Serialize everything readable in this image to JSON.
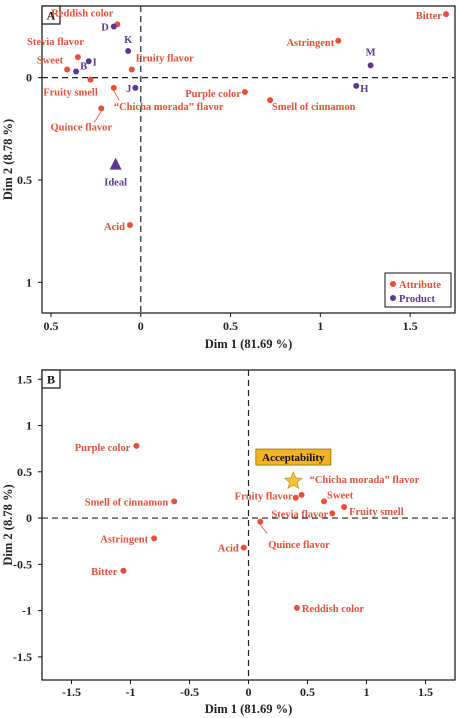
{
  "colors": {
    "attribute": "#e8503a",
    "product": "#5b3a8e",
    "highlight_fill": "#f3b324",
    "star": "#f3c13b",
    "axis": "#222222"
  },
  "chart_data": [
    {
      "panel": "A",
      "type": "scatter",
      "xlabel": "Dim 1 (81.69 %)",
      "ylabel": "Dim 2 (8.78 %)",
      "xlim": [
        -0.55,
        1.75
      ],
      "ylim": [
        -1.15,
        0.35
      ],
      "x_ticks": [
        {
          "value": -0.5,
          "label": "0.5"
        },
        {
          "value": 0,
          "label": "0"
        },
        {
          "value": 0.5,
          "label": "0.5"
        },
        {
          "value": 1,
          "label": "1"
        },
        {
          "value": 1.5,
          "label": "1.5"
        }
      ],
      "y_ticks": [
        {
          "value": 0,
          "label": "0"
        },
        {
          "value": -0.5,
          "label": "0.5"
        },
        {
          "value": -1,
          "label": "1"
        }
      ],
      "legend": {
        "position": "bottom-right",
        "entries": [
          "Attribute",
          "Product"
        ]
      },
      "series": [
        {
          "name": "Attribute",
          "marker": "circle",
          "points": [
            {
              "label": "Reddish color",
              "x": -0.13,
              "y": 0.26,
              "anchor": "end",
              "dx": -4,
              "dy": -8
            },
            {
              "label": "Stevia flavor",
              "x": -0.35,
              "y": 0.1,
              "anchor": "end",
              "dx": 6,
              "dy": -12
            },
            {
              "label": "Sweet",
              "x": -0.41,
              "y": 0.04,
              "anchor": "end",
              "dx": -4,
              "dy": -6
            },
            {
              "label": "Fruity smell",
              "x": -0.28,
              "y": -0.01,
              "anchor": "middle",
              "dx": -20,
              "dy": 16
            },
            {
              "label": "Fruity flavor",
              "x": -0.05,
              "y": 0.04,
              "anchor": "start",
              "dx": 4,
              "dy": -8
            },
            {
              "label": "Quince flavor",
              "x": -0.22,
              "y": -0.15,
              "anchor": "middle",
              "dx": -20,
              "dy": 22
            },
            {
              "label": "“Chicha morada” flavor",
              "x": -0.15,
              "y": -0.05,
              "anchor": "start",
              "dx": 0,
              "dy": 22
            },
            {
              "label": "Astringent",
              "x": 1.1,
              "y": 0.18,
              "anchor": "end",
              "dx": -4,
              "dy": 5
            },
            {
              "label": "Bitter",
              "x": 1.7,
              "y": 0.31,
              "anchor": "end",
              "dx": -4,
              "dy": 5
            },
            {
              "label": "Purple color",
              "x": 0.58,
              "y": -0.07,
              "anchor": "end",
              "dx": -4,
              "dy": 5
            },
            {
              "label": "Smell of cinnamon",
              "x": 0.72,
              "y": -0.11,
              "anchor": "start",
              "dx": 2,
              "dy": 10
            },
            {
              "label": "Acid",
              "x": -0.06,
              "y": -0.72,
              "anchor": "end",
              "dx": -5,
              "dy": 5
            }
          ]
        },
        {
          "name": "Product",
          "marker": "circle",
          "points": [
            {
              "label": "D",
              "x": -0.15,
              "y": 0.25,
              "anchor": "end",
              "dx": -5,
              "dy": 4
            },
            {
              "label": "K",
              "x": -0.07,
              "y": 0.13,
              "anchor": "middle",
              "dx": 0,
              "dy": -8
            },
            {
              "label": "I",
              "x": -0.29,
              "y": 0.08,
              "anchor": "start",
              "dx": 4,
              "dy": 4
            },
            {
              "label": "B",
              "x": -0.36,
              "y": 0.03,
              "anchor": "start",
              "dx": 4,
              "dy": -2
            },
            {
              "label": "J",
              "x": -0.03,
              "y": -0.05,
              "anchor": "end",
              "dx": -4,
              "dy": 4
            },
            {
              "label": "M",
              "x": 1.28,
              "y": 0.06,
              "anchor": "middle",
              "dx": 0,
              "dy": -10
            },
            {
              "label": "H",
              "x": 1.2,
              "y": -0.04,
              "anchor": "start",
              "dx": 4,
              "dy": 6
            }
          ]
        },
        {
          "name": "Ideal",
          "marker": "triangle",
          "points": [
            {
              "label": "Ideal",
              "x": -0.14,
              "y": -0.42,
              "anchor": "middle",
              "dx": 0,
              "dy": 22
            }
          ]
        }
      ]
    },
    {
      "panel": "B",
      "type": "scatter",
      "xlabel": "Dim 1 (81.69 %)",
      "ylabel": "Dim 2 (8.78 %)",
      "xlim": [
        -1.75,
        1.75
      ],
      "ylim": [
        -1.75,
        1.6
      ],
      "x_ticks": [
        {
          "value": -1.5,
          "label": "-1.5"
        },
        {
          "value": -1,
          "label": "-1"
        },
        {
          "value": -0.5,
          "label": "-0.5"
        },
        {
          "value": 0,
          "label": "0"
        },
        {
          "value": 0.5,
          "label": "0.5"
        },
        {
          "value": 1,
          "label": "1"
        },
        {
          "value": 1.5,
          "label": "1.5"
        }
      ],
      "y_ticks": [
        {
          "value": 1.5,
          "label": "1.5"
        },
        {
          "value": 1,
          "label": "1"
        },
        {
          "value": 0.5,
          "label": "0.5"
        },
        {
          "value": 0,
          "label": "0"
        },
        {
          "value": -0.5,
          "label": "-0.5"
        },
        {
          "value": -1,
          "label": "-1"
        },
        {
          "value": -1.5,
          "label": "-1.5"
        }
      ],
      "series": [
        {
          "name": "Attribute",
          "marker": "circle",
          "points": [
            {
              "label": "Purple color",
              "x": -0.95,
              "y": 0.78,
              "anchor": "end",
              "dx": -6,
              "dy": 5
            },
            {
              "label": "Smell of cinnamon",
              "x": -0.63,
              "y": 0.18,
              "anchor": "end",
              "dx": -6,
              "dy": 4
            },
            {
              "label": "Astringent",
              "x": -0.8,
              "y": -0.22,
              "anchor": "end",
              "dx": -6,
              "dy": 4
            },
            {
              "label": "Bitter",
              "x": -1.06,
              "y": -0.57,
              "anchor": "end",
              "dx": -6,
              "dy": 4
            },
            {
              "label": "Acid",
              "x": -0.04,
              "y": -0.32,
              "anchor": "end",
              "dx": -5,
              "dy": 4
            },
            {
              "label": "Quince flavor",
              "x": 0.1,
              "y": -0.04,
              "anchor": "start",
              "dx": 8,
              "dy": 26
            },
            {
              "label": "Fruity flavor",
              "x": 0.4,
              "y": 0.22,
              "anchor": "end",
              "dx": -3,
              "dy": 2
            },
            {
              "label": "“Chicha morada” flavor",
              "x": 0.45,
              "y": 0.25,
              "anchor": "start",
              "dx": 8,
              "dy": -12
            },
            {
              "label": "Sweet",
              "x": 0.64,
              "y": 0.18,
              "anchor": "start",
              "dx": 3,
              "dy": -3
            },
            {
              "label": "Stevia flavor",
              "x": 0.71,
              "y": 0.05,
              "anchor": "end",
              "dx": -4,
              "dy": 4
            },
            {
              "label": "Fruity smell",
              "x": 0.81,
              "y": 0.12,
              "anchor": "start",
              "dx": 5,
              "dy": 8
            },
            {
              "label": "Reddish color",
              "x": 0.41,
              "y": -0.97,
              "anchor": "start",
              "dx": 5,
              "dy": 4
            }
          ]
        },
        {
          "name": "Acceptability",
          "marker": "star",
          "points": [
            {
              "label": "Acceptability",
              "x": 0.38,
              "y": 0.4,
              "anchor": "middle",
              "dx": 0,
              "dy": -20
            }
          ]
        }
      ]
    }
  ]
}
